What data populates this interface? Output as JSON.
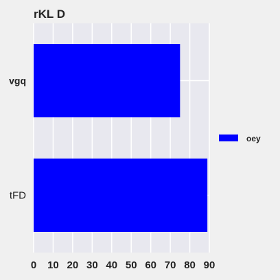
{
  "chart_data": {
    "type": "bar",
    "orientation": "horizontal",
    "title": "rKL D",
    "xlabel": "",
    "ylabel": "",
    "categories": [
      "vgq",
      "tFD"
    ],
    "series": [
      {
        "name": "oey",
        "values": [
          75,
          89
        ],
        "color": "#0000ff"
      }
    ],
    "xlim": [
      0,
      90
    ],
    "xticks": [
      "0",
      "10",
      "20",
      "30",
      "40",
      "50",
      "60",
      "70",
      "80",
      "90"
    ],
    "grid": true,
    "legend_position": "right",
    "colors": {
      "page_background": "#f0f0f0",
      "plot_background": "#e8e8ef",
      "grid": "#ffffff",
      "bar": "#0000ff"
    }
  }
}
